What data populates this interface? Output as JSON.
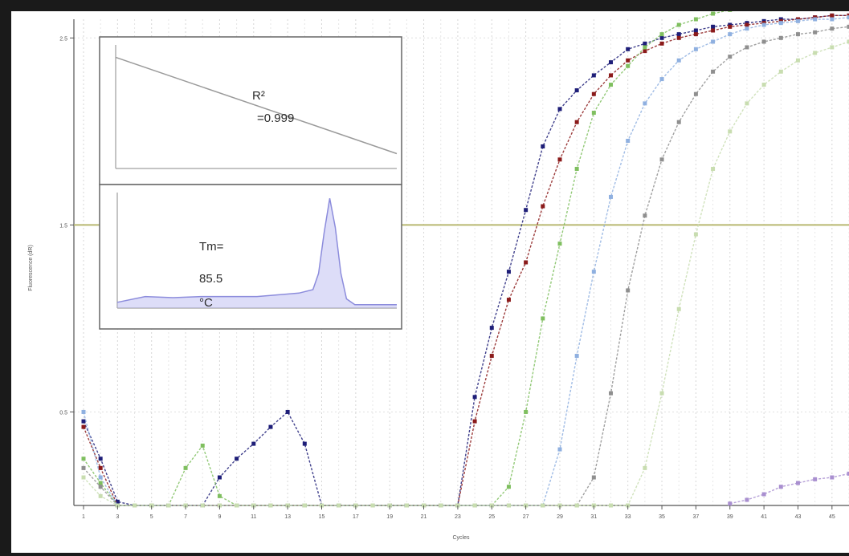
{
  "chart_data": [
    {
      "type": "scatter",
      "title": "",
      "xlabel": "Cycles",
      "ylabel": "Fluorescence (dR)",
      "xlim": [
        1,
        46
      ],
      "ylim": [
        0,
        2.6
      ],
      "grid": "on",
      "threshold": 1.5,
      "y_ticks": [
        {
          "value": 0.5,
          "label": "0.5"
        },
        {
          "value": 1.5,
          "label": "1.5"
        },
        {
          "value": 2.5,
          "label": "2.5"
        }
      ],
      "x_ticks": [
        1,
        3,
        5,
        7,
        9,
        11,
        13,
        15,
        17,
        19,
        21,
        23,
        25,
        27,
        29,
        31,
        33,
        35,
        37,
        39,
        41,
        43,
        45
      ],
      "series": [
        {
          "color": "#1e1e78",
          "x": [
            1,
            2,
            3,
            4,
            5,
            6,
            7,
            8,
            9,
            10,
            11,
            12,
            13,
            14,
            15,
            16,
            17,
            18,
            19,
            20,
            21,
            22,
            23,
            24,
            25,
            26,
            27,
            28,
            29,
            30,
            31,
            32,
            33,
            34,
            35,
            36,
            37,
            38,
            39,
            40,
            41,
            42,
            43,
            44,
            45,
            46
          ],
          "y": [
            0.45,
            0.25,
            0.02,
            0,
            0,
            0,
            0,
            0,
            0.15,
            0.25,
            0.33,
            0.42,
            0.5,
            0.33,
            0,
            0,
            0,
            0,
            0,
            0,
            0,
            0,
            0,
            0.58,
            0.95,
            1.25,
            1.58,
            1.92,
            2.12,
            2.22,
            2.3,
            2.37,
            2.44,
            2.47,
            2.5,
            2.52,
            2.54,
            2.56,
            2.57,
            2.58,
            2.59,
            2.6,
            2.6,
            2.61,
            2.62,
            2.62
          ]
        },
        {
          "color": "#8b1a1a",
          "x": [
            1,
            2,
            3,
            4,
            5,
            6,
            7,
            8,
            9,
            10,
            11,
            12,
            13,
            14,
            15,
            16,
            17,
            18,
            19,
            20,
            21,
            22,
            23,
            24,
            25,
            26,
            27,
            28,
            29,
            30,
            31,
            32,
            33,
            34,
            35,
            36,
            37,
            38,
            39,
            40,
            41,
            42,
            43,
            44,
            45,
            46
          ],
          "y": [
            0.42,
            0.2,
            0,
            0,
            0,
            0,
            0,
            0,
            0,
            0,
            0,
            0,
            0,
            0,
            0,
            0,
            0,
            0,
            0,
            0,
            0,
            0,
            0,
            0.45,
            0.8,
            1.1,
            1.3,
            1.6,
            1.85,
            2.05,
            2.2,
            2.3,
            2.38,
            2.43,
            2.47,
            2.5,
            2.52,
            2.54,
            2.56,
            2.57,
            2.58,
            2.59,
            2.6,
            2.61,
            2.62,
            2.62
          ]
        },
        {
          "color": "#7fbf5f",
          "x": [
            1,
            2,
            3,
            4,
            5,
            6,
            7,
            8,
            9,
            10,
            11,
            12,
            13,
            14,
            15,
            16,
            17,
            18,
            19,
            20,
            21,
            22,
            23,
            24,
            25,
            26,
            27,
            28,
            29,
            30,
            31,
            32,
            33,
            34,
            35,
            36,
            37,
            38,
            39,
            40,
            41,
            42,
            43,
            44,
            45,
            46
          ],
          "y": [
            0.25,
            0.12,
            0,
            0,
            0,
            0,
            0.2,
            0.32,
            0.05,
            0,
            0,
            0,
            0,
            0,
            0,
            0,
            0,
            0,
            0,
            0,
            0,
            0,
            0,
            0,
            0,
            0.1,
            0.5,
            1.0,
            1.4,
            1.8,
            2.1,
            2.25,
            2.35,
            2.45,
            2.52,
            2.57,
            2.6,
            2.63,
            2.65,
            2.66,
            2.67,
            2.68,
            2.68,
            2.69,
            2.7,
            2.7
          ]
        },
        {
          "color": "#8fb0e0",
          "x": [
            1,
            2,
            3,
            4,
            5,
            6,
            7,
            8,
            9,
            10,
            11,
            12,
            13,
            14,
            15,
            16,
            17,
            18,
            19,
            20,
            21,
            22,
            23,
            24,
            25,
            26,
            27,
            28,
            29,
            30,
            31,
            32,
            33,
            34,
            35,
            36,
            37,
            38,
            39,
            40,
            41,
            42,
            43,
            44,
            45,
            46
          ],
          "y": [
            0.5,
            0.15,
            0,
            0,
            0,
            0,
            0,
            0,
            0,
            0,
            0,
            0,
            0,
            0,
            0,
            0,
            0,
            0,
            0,
            0,
            0,
            0,
            0,
            0,
            0,
            0,
            0,
            0,
            0.3,
            0.8,
            1.25,
            1.65,
            1.95,
            2.15,
            2.28,
            2.38,
            2.44,
            2.48,
            2.52,
            2.55,
            2.57,
            2.58,
            2.59,
            2.6,
            2.6,
            2.61
          ]
        },
        {
          "color": "#8f8f8f",
          "x": [
            1,
            2,
            3,
            4,
            5,
            6,
            7,
            8,
            9,
            10,
            11,
            12,
            13,
            14,
            15,
            16,
            17,
            18,
            19,
            20,
            21,
            22,
            23,
            24,
            25,
            26,
            27,
            28,
            29,
            30,
            31,
            32,
            33,
            34,
            35,
            36,
            37,
            38,
            39,
            40,
            41,
            42,
            43,
            44,
            45,
            46
          ],
          "y": [
            0.2,
            0.1,
            0,
            0,
            0,
            0,
            0,
            0,
            0,
            0,
            0,
            0,
            0,
            0,
            0,
            0,
            0,
            0,
            0,
            0,
            0,
            0,
            0,
            0,
            0,
            0,
            0,
            0,
            0,
            0,
            0.15,
            0.6,
            1.15,
            1.55,
            1.85,
            2.05,
            2.2,
            2.32,
            2.4,
            2.45,
            2.48,
            2.5,
            2.52,
            2.53,
            2.55,
            2.56
          ]
        },
        {
          "color": "#c8ddb0",
          "x": [
            1,
            2,
            3,
            4,
            5,
            6,
            7,
            8,
            9,
            10,
            11,
            12,
            13,
            14,
            15,
            16,
            17,
            18,
            19,
            20,
            21,
            22,
            23,
            24,
            25,
            26,
            27,
            28,
            29,
            30,
            31,
            32,
            33,
            34,
            35,
            36,
            37,
            38,
            39,
            40,
            41,
            42,
            43,
            44,
            45,
            46
          ],
          "y": [
            0.15,
            0.05,
            0,
            0,
            0,
            0,
            0,
            0,
            0,
            0,
            0,
            0,
            0,
            0,
            0,
            0,
            0,
            0,
            0,
            0,
            0,
            0,
            0,
            0,
            0,
            0,
            0,
            0,
            0,
            0,
            0,
            0,
            0,
            0.2,
            0.6,
            1.05,
            1.45,
            1.8,
            2.0,
            2.15,
            2.25,
            2.32,
            2.38,
            2.42,
            2.45,
            2.48
          ]
        },
        {
          "color": "#a98fd0",
          "x": [
            39,
            40,
            41,
            42,
            43,
            44,
            45,
            46
          ],
          "y": [
            0.01,
            0.03,
            0.06,
            0.1,
            0.12,
            0.14,
            0.15,
            0.17
          ]
        }
      ]
    },
    {
      "type": "line",
      "title": "",
      "xlabel": "",
      "ylabel": "",
      "annotation": {
        "line1": "R²",
        "line2": "=0.999"
      },
      "x": [
        0,
        1
      ],
      "y": [
        0.9,
        0.12
      ],
      "xlim": [
        0,
        1
      ],
      "ylim": [
        0,
        1
      ]
    },
    {
      "type": "line",
      "title": "",
      "xlabel": "",
      "ylabel": "",
      "annotation": {
        "line1": "Tm=",
        "line2": "85.5",
        "line3": "°C"
      },
      "x": [
        0,
        0.1,
        0.2,
        0.3,
        0.4,
        0.5,
        0.6,
        0.65,
        0.7,
        0.72,
        0.74,
        0.76,
        0.78,
        0.8,
        0.82,
        0.85,
        0.9,
        1.0
      ],
      "y": [
        0.05,
        0.1,
        0.09,
        0.1,
        0.1,
        0.1,
        0.12,
        0.13,
        0.16,
        0.3,
        0.65,
        0.95,
        0.7,
        0.3,
        0.08,
        0.03,
        0.03,
        0.03
      ],
      "xlim": [
        0,
        1
      ],
      "ylim": [
        0,
        1
      ]
    }
  ]
}
